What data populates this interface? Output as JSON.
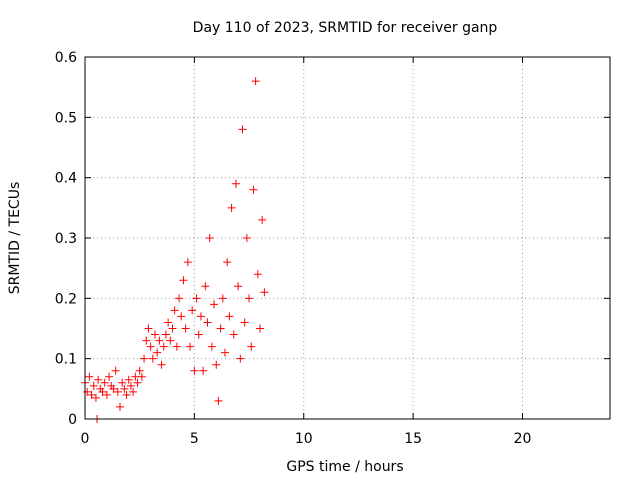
{
  "chart_data": {
    "type": "scatter",
    "title": "Day 110 of 2023, SRMTID for receiver ganp",
    "xlabel": "GPS time / hours",
    "ylabel": "SRMTID / TECUs",
    "xlim": [
      0,
      24
    ],
    "ylim": [
      0,
      0.6
    ],
    "grid": true,
    "marker": "+",
    "xticks": [
      0,
      5,
      10,
      15,
      20
    ],
    "xtick_labels": [
      "0",
      "5",
      "10",
      "15",
      "20"
    ],
    "yticks": [
      0,
      0.1,
      0.2,
      0.3,
      0.4,
      0.5,
      0.6
    ],
    "ytick_labels": [
      "0",
      "0.1",
      "0.2",
      "0.3",
      "0.4",
      "0.5",
      "0.6"
    ],
    "series": [
      {
        "name": "SRMTID",
        "color": "#ff0000",
        "points": [
          [
            0.0,
            0.06
          ],
          [
            0.1,
            0.045
          ],
          [
            0.2,
            0.07
          ],
          [
            0.3,
            0.04
          ],
          [
            0.4,
            0.055
          ],
          [
            0.5,
            0.035
          ],
          [
            0.55,
            0.0
          ],
          [
            0.6,
            0.065
          ],
          [
            0.7,
            0.05
          ],
          [
            0.8,
            0.045
          ],
          [
            0.9,
            0.06
          ],
          [
            1.0,
            0.04
          ],
          [
            1.1,
            0.07
          ],
          [
            1.2,
            0.055
          ],
          [
            1.3,
            0.05
          ],
          [
            1.4,
            0.08
          ],
          [
            1.5,
            0.045
          ],
          [
            1.6,
            0.02
          ],
          [
            1.7,
            0.06
          ],
          [
            1.8,
            0.05
          ],
          [
            1.9,
            0.04
          ],
          [
            2.0,
            0.065
          ],
          [
            2.1,
            0.055
          ],
          [
            2.2,
            0.045
          ],
          [
            2.3,
            0.07
          ],
          [
            2.4,
            0.06
          ],
          [
            2.5,
            0.08
          ],
          [
            2.6,
            0.07
          ],
          [
            2.7,
            0.1
          ],
          [
            2.8,
            0.13
          ],
          [
            2.9,
            0.15
          ],
          [
            3.0,
            0.12
          ],
          [
            3.1,
            0.1
          ],
          [
            3.2,
            0.14
          ],
          [
            3.3,
            0.11
          ],
          [
            3.4,
            0.13
          ],
          [
            3.5,
            0.09
          ],
          [
            3.6,
            0.12
          ],
          [
            3.7,
            0.14
          ],
          [
            3.8,
            0.16
          ],
          [
            3.9,
            0.13
          ],
          [
            4.0,
            0.15
          ],
          [
            4.1,
            0.18
          ],
          [
            4.2,
            0.12
          ],
          [
            4.3,
            0.2
          ],
          [
            4.4,
            0.17
          ],
          [
            4.5,
            0.23
          ],
          [
            4.6,
            0.15
          ],
          [
            4.7,
            0.26
          ],
          [
            4.8,
            0.12
          ],
          [
            4.9,
            0.18
          ],
          [
            5.0,
            0.08
          ],
          [
            5.1,
            0.2
          ],
          [
            5.2,
            0.14
          ],
          [
            5.3,
            0.17
          ],
          [
            5.4,
            0.08
          ],
          [
            5.5,
            0.22
          ],
          [
            5.6,
            0.16
          ],
          [
            5.7,
            0.3
          ],
          [
            5.8,
            0.12
          ],
          [
            5.9,
            0.19
          ],
          [
            6.0,
            0.09
          ],
          [
            6.1,
            0.03
          ],
          [
            6.2,
            0.15
          ],
          [
            6.3,
            0.2
          ],
          [
            6.4,
            0.11
          ],
          [
            6.5,
            0.26
          ],
          [
            6.6,
            0.17
          ],
          [
            6.7,
            0.35
          ],
          [
            6.8,
            0.14
          ],
          [
            6.9,
            0.39
          ],
          [
            7.0,
            0.22
          ],
          [
            7.1,
            0.1
          ],
          [
            7.2,
            0.48
          ],
          [
            7.3,
            0.16
          ],
          [
            7.4,
            0.3
          ],
          [
            7.5,
            0.2
          ],
          [
            7.6,
            0.12
          ],
          [
            7.7,
            0.38
          ],
          [
            7.8,
            0.56
          ],
          [
            7.9,
            0.24
          ],
          [
            8.0,
            0.15
          ],
          [
            8.1,
            0.33
          ],
          [
            8.2,
            0.21
          ]
        ]
      }
    ]
  }
}
